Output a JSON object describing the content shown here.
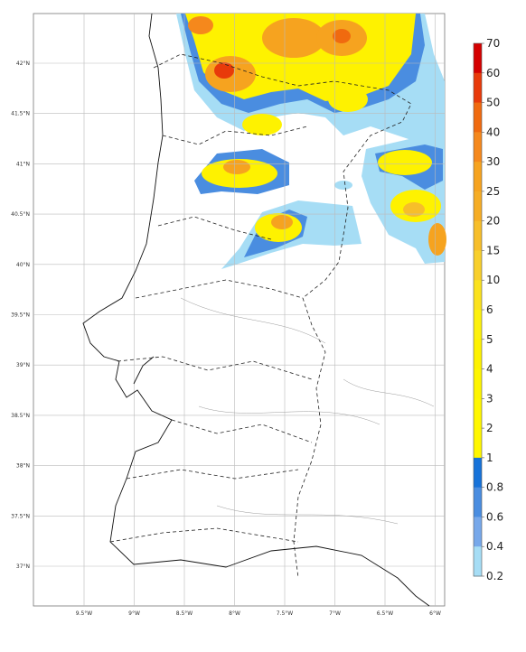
{
  "map": {
    "lon_ticks": [
      "9.5°W",
      "9°W",
      "8.5°W",
      "8°W",
      "7.5°W",
      "7°W",
      "6.5°W",
      "6°W"
    ],
    "lat_ticks": [
      "42°N",
      "41.5°N",
      "41°N",
      "40.5°N",
      "40°N",
      "39.5°N",
      "39°N",
      "38.5°N",
      "38°N",
      "37.5°N",
      "37°N"
    ]
  },
  "colorbar": {
    "levels": [
      "70",
      "60",
      "50",
      "40",
      "30",
      "25",
      "20",
      "15",
      "10",
      "6",
      "5",
      "4",
      "3",
      "2",
      "1",
      "0.8",
      "0.6",
      "0.4",
      "0.2"
    ],
    "colors": [
      "#d40000",
      "#e83a0a",
      "#f06a0f",
      "#f5881c",
      "#f6a31f",
      "#f6ad25",
      "#f7be2a",
      "#f8cf2b",
      "#fbe21d",
      "#fdf10c",
      "#fef200",
      "#fef500",
      "#fff700",
      "#fff700",
      "#1672d9",
      "#4a8de0",
      "#77a8ea",
      "#a6ddf5"
    ]
  }
}
